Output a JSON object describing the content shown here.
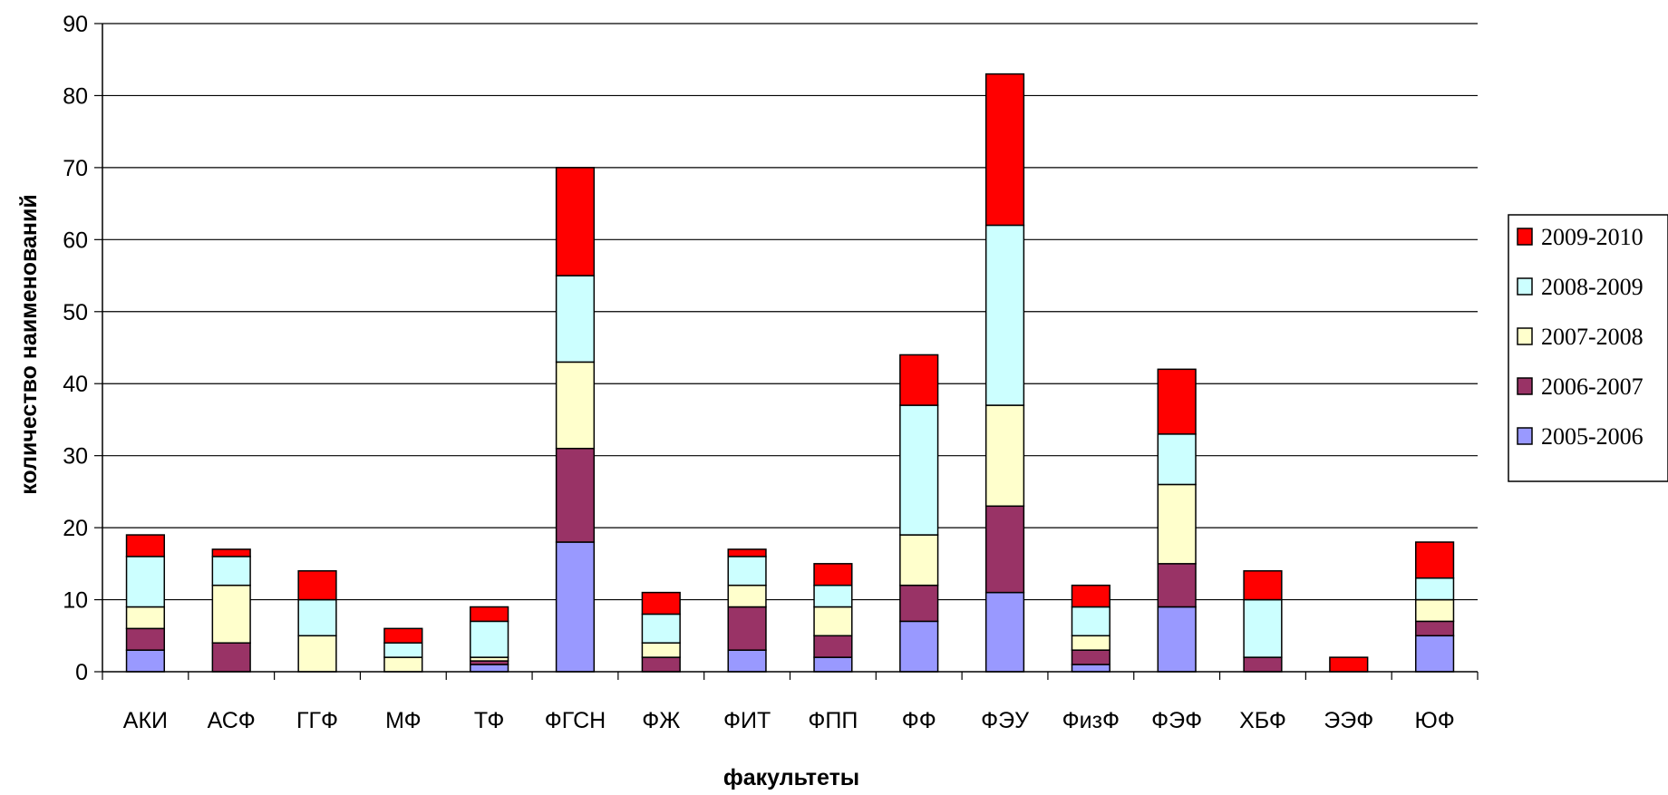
{
  "chart_data": {
    "type": "bar",
    "stacked": true,
    "xlabel": "факультеты",
    "ylabel": "количество наименований",
    "ylim": [
      0,
      90
    ],
    "yticks": [
      0,
      10,
      20,
      30,
      40,
      50,
      60,
      70,
      80,
      90
    ],
    "grid": true,
    "legend_position": "right",
    "categories": [
      "АКИ",
      "АСФ",
      "ГГФ",
      "МФ",
      "ТФ",
      "ФГСН",
      "ФЖ",
      "ФИТ",
      "ФПП",
      "ФФ",
      "ФЭУ",
      "ФизФ",
      "ФЭФ",
      "ХБФ",
      "ЭЭФ",
      "ЮФ"
    ],
    "series": [
      {
        "name": "2005-2006",
        "color": "#9999ff",
        "values": [
          3,
          0,
          0,
          0,
          1,
          18,
          0,
          3,
          2,
          7,
          11,
          1,
          9,
          0,
          0,
          5
        ]
      },
      {
        "name": "2006-2007",
        "color": "#993366",
        "values": [
          3,
          4,
          0,
          0,
          0.5,
          13,
          2,
          6,
          3,
          5,
          12,
          2,
          6,
          2,
          0,
          2
        ]
      },
      {
        "name": "2007-2008",
        "color": "#ffffcc",
        "values": [
          3,
          8,
          5,
          2,
          0.5,
          12,
          2,
          3,
          4,
          7,
          14,
          2,
          11,
          0,
          0,
          3
        ]
      },
      {
        "name": "2008-2009",
        "color": "#ccffff",
        "values": [
          7,
          4,
          5,
          2,
          5,
          12,
          4,
          4,
          3,
          18,
          25,
          4,
          7,
          8,
          0,
          3
        ]
      },
      {
        "name": "2009-2010",
        "color": "#ff0000",
        "values": [
          3,
          1,
          4,
          2,
          2,
          15,
          3,
          1,
          3,
          7,
          21,
          3,
          9,
          4,
          2,
          5
        ]
      }
    ]
  }
}
